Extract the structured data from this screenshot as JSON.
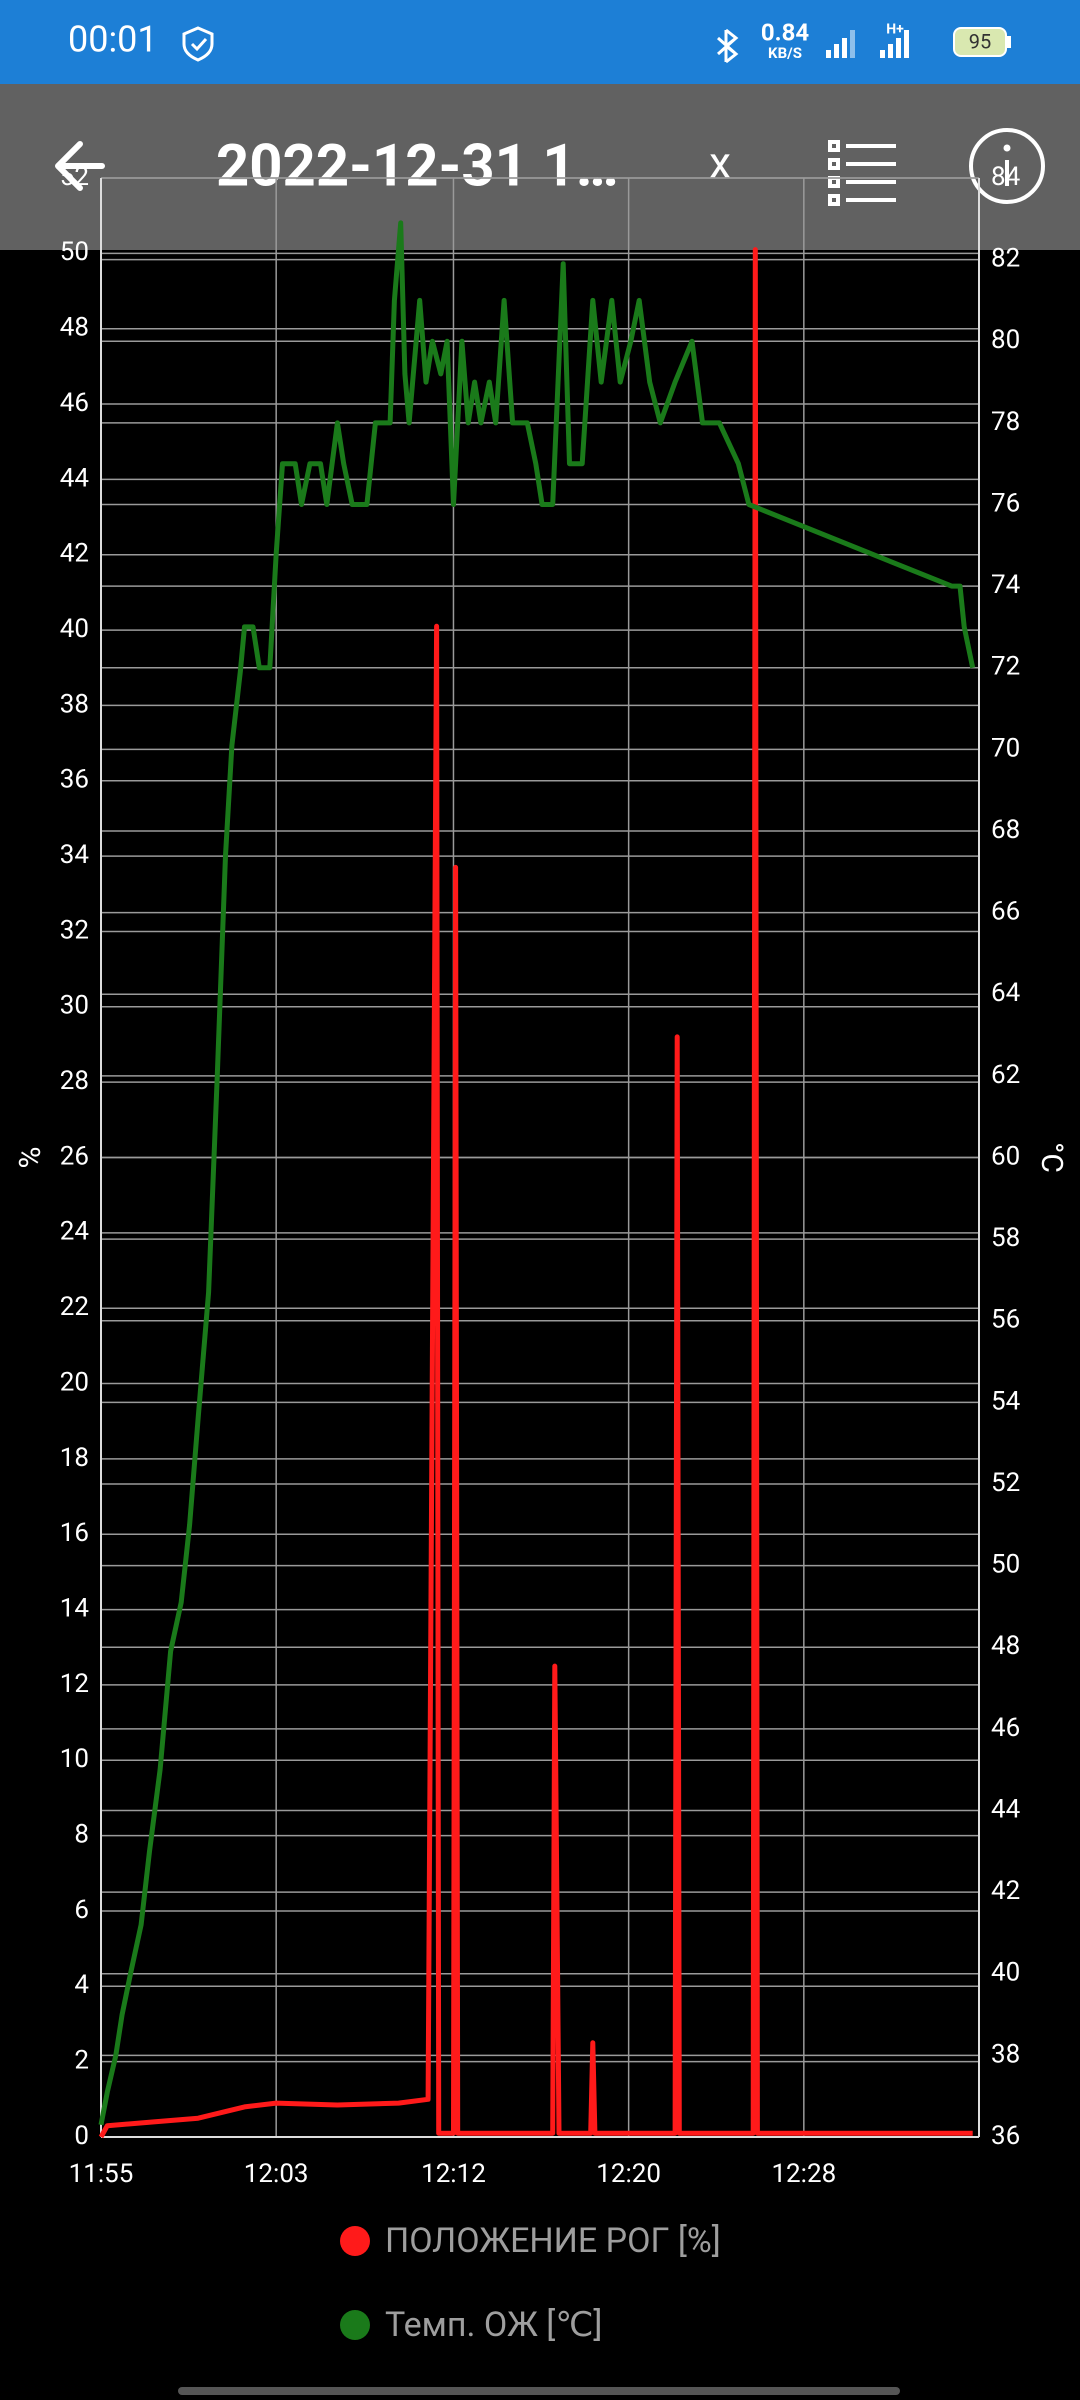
{
  "status_bar": {
    "time": "00:01",
    "speed": "0.84",
    "speed_unit": "KB/S",
    "network": "H+",
    "battery": "95"
  },
  "app_bar": {
    "title": "2022-12-31 1…",
    "close": "x"
  },
  "chart_data": {
    "type": "line",
    "y_label": "%",
    "y2_label": "°C",
    "xlim": [
      715,
      756.6
    ],
    "xticks": [
      {
        "value": 715,
        "label": "11:55"
      },
      {
        "value": 723.3,
        "label": "12:03"
      },
      {
        "value": 731.7,
        "label": "12:12"
      },
      {
        "value": 740,
        "label": "12:20"
      },
      {
        "value": 748.3,
        "label": "12:28"
      }
    ],
    "ylim": [
      0,
      52
    ],
    "yticks": [
      0,
      2,
      4,
      6,
      8,
      10,
      12,
      14,
      16,
      18,
      20,
      22,
      24,
      26,
      28,
      30,
      32,
      34,
      36,
      38,
      40,
      42,
      44,
      46,
      48,
      50,
      52
    ],
    "y2lim": [
      36,
      84
    ],
    "y2ticks": [
      36,
      38,
      40,
      42,
      44,
      46,
      48,
      50,
      52,
      54,
      56,
      58,
      60,
      62,
      64,
      66,
      68,
      70,
      72,
      74,
      76,
      78,
      80,
      82,
      84
    ],
    "grid": true,
    "series": [
      {
        "name": "ПОЛОЖЕНИЕ РОГ [%]",
        "color": "#ff1a1a",
        "axis": "y",
        "x": [
          715.0,
          715.3,
          717.5,
          719.6,
          721.8,
          723.3,
          726.2,
          729.1,
          730.5,
          730.9,
          731.0,
          731.7,
          731.8,
          731.9,
          736.4,
          736.5,
          736.7,
          738.2,
          738.3,
          738.4,
          742.2,
          742.3,
          742.4,
          745.9,
          746.0,
          746.1,
          756.3
        ],
        "values": [
          0,
          0.3,
          0.4,
          0.5,
          0.8,
          0.9,
          0.85,
          0.9,
          1.0,
          40.1,
          0.1,
          0.1,
          33.7,
          0.1,
          0.1,
          12.5,
          0.1,
          0.1,
          2.5,
          0.1,
          0.1,
          29.2,
          0.1,
          0.1,
          50.1,
          0.1,
          0.1
        ]
      },
      {
        "name": "Темп. ОЖ [℃]",
        "color": "#1a7a1a",
        "axis": "y2",
        "x": [
          715.0,
          715.3,
          715.7,
          716.0,
          716.4,
          716.9,
          717.3,
          717.8,
          718.3,
          718.8,
          719.2,
          719.6,
          720.1,
          720.5,
          720.9,
          721.2,
          721.6,
          721.8,
          722.2,
          722.5,
          723.0,
          723.3,
          723.6,
          724.2,
          724.5,
          724.9,
          725.4,
          725.7,
          726.2,
          726.5,
          726.9,
          727.6,
          728.0,
          728.7,
          728.9,
          729.2,
          729.4,
          729.6,
          730.1,
          730.4,
          730.7,
          731.1,
          731.4,
          731.7,
          732.1,
          732.4,
          732.7,
          733.0,
          733.4,
          733.7,
          734.1,
          734.5,
          735.2,
          735.6,
          735.9,
          736.4,
          736.9,
          737.2,
          737.8,
          738.3,
          738.7,
          739.2,
          739.6,
          740.1,
          740.5,
          741.0,
          741.5,
          742.2,
          743.0,
          743.5,
          744.3,
          745.2,
          745.7,
          755.3,
          755.7,
          755.9,
          756.3
        ],
        "values": [
          36.3,
          37.1,
          38.0,
          39.0,
          40.0,
          41.2,
          43.0,
          45.0,
          47.9,
          49.1,
          51.0,
          53.6,
          56.7,
          61.9,
          67.4,
          70.1,
          71.9,
          73.0,
          73.0,
          72.0,
          72.0,
          74.8,
          77.0,
          77.0,
          76.0,
          77.0,
          77.0,
          76.0,
          78.0,
          77.0,
          76.0,
          76.0,
          78.0,
          78.0,
          81.0,
          82.9,
          79.2,
          78.0,
          81.0,
          79.0,
          80.0,
          79.2,
          80.0,
          76.0,
          80.0,
          78.0,
          79.0,
          78.0,
          79.0,
          78.0,
          81.0,
          78.0,
          78.0,
          77.0,
          76.0,
          76.0,
          81.9,
          77.0,
          77.0,
          81.0,
          79.0,
          81.0,
          79.0,
          80.0,
          81.0,
          79.0,
          78.0,
          79.0,
          80.0,
          78.0,
          78.0,
          77.0,
          76.0,
          74.0,
          74.0,
          73.0,
          72.0
        ]
      }
    ]
  }
}
